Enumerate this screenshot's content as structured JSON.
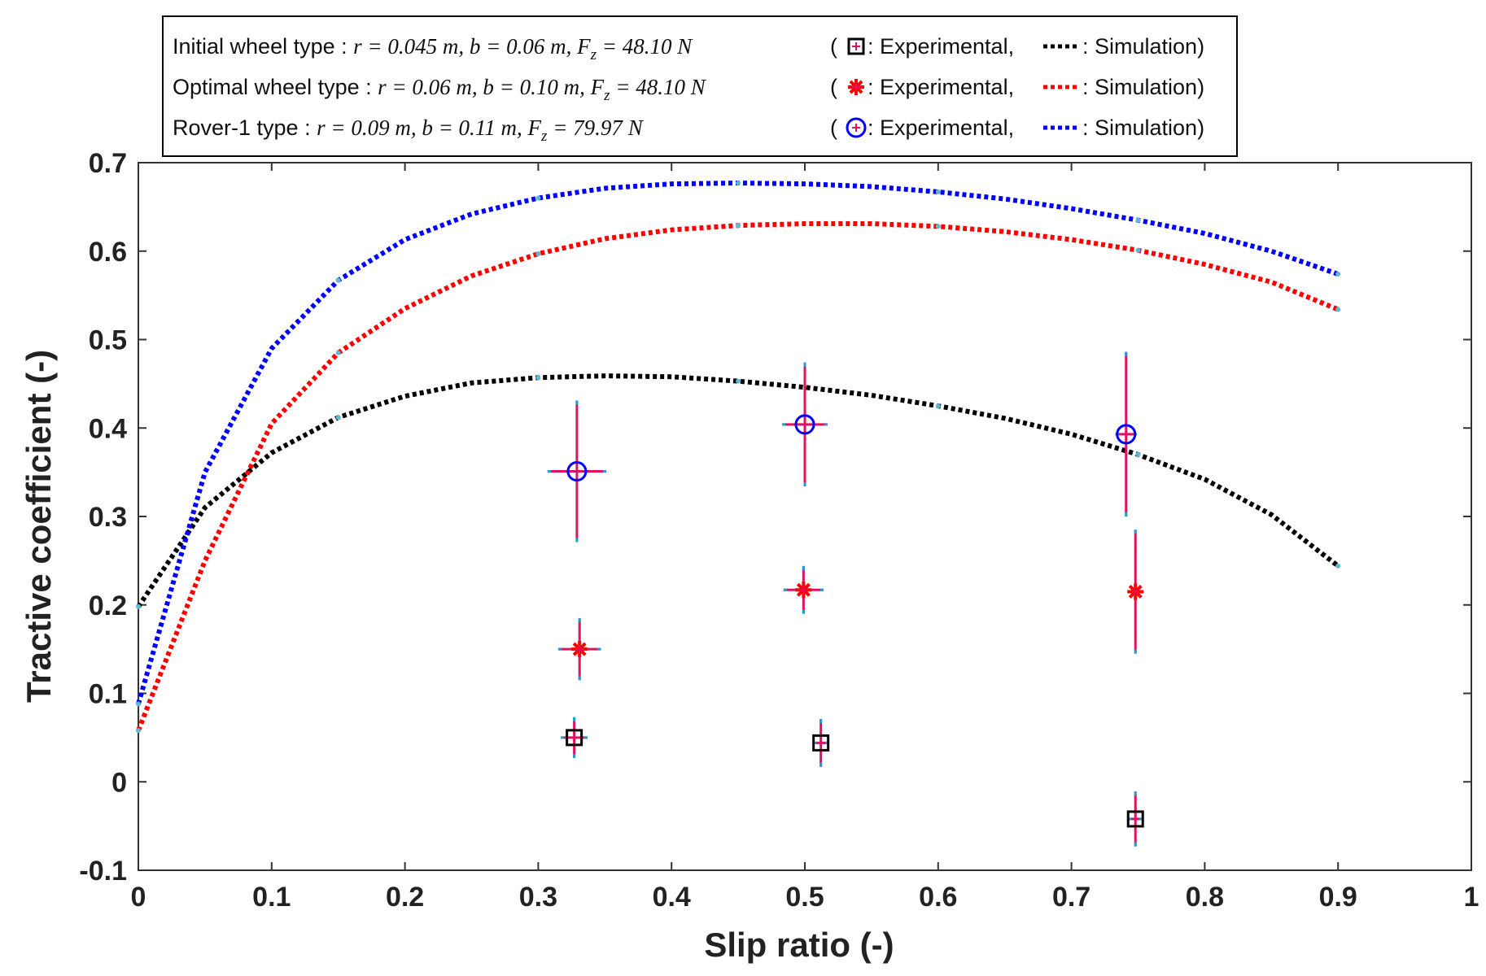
{
  "chart_data": {
    "type": "line",
    "xlabel": "Slip ratio (-)",
    "ylabel": "Tractive coefficient (-)",
    "xlim": [
      0,
      1
    ],
    "ylim": [
      -0.1,
      0.7
    ],
    "xticks": [
      "0",
      "0.1",
      "0.2",
      "0.3",
      "0.4",
      "0.5",
      "0.6",
      "0.7",
      "0.8",
      "0.9",
      "1"
    ],
    "yticks": [
      "-0.1",
      "0",
      "0.1",
      "0.2",
      "0.3",
      "0.4",
      "0.5",
      "0.6",
      "0.7"
    ],
    "grid": false,
    "legend_position": "top-left",
    "series": [
      {
        "key": "initial",
        "name": "Initial wheel type",
        "color": "#000000",
        "params": {
          "r": "0.045",
          "b": "0.06",
          "fz": "48.10"
        },
        "marker": "square",
        "sim": {
          "x": [
            0,
            0.05,
            0.1,
            0.15,
            0.2,
            0.25,
            0.3,
            0.35,
            0.4,
            0.45,
            0.5,
            0.55,
            0.6,
            0.65,
            0.7,
            0.75,
            0.8,
            0.85,
            0.9
          ],
          "y": [
            0.198,
            0.31,
            0.372,
            0.412,
            0.436,
            0.451,
            0.457,
            0.459,
            0.458,
            0.453,
            0.446,
            0.437,
            0.425,
            0.411,
            0.393,
            0.37,
            0.342,
            0.302,
            0.244
          ]
        },
        "exp": [
          {
            "x": 0.327,
            "y": 0.05,
            "yerr": 0.023,
            "xerr": 0.01
          },
          {
            "x": 0.512,
            "y": 0.044,
            "yerr": 0.027,
            "xerr": 0.006
          },
          {
            "x": 0.748,
            "y": -0.042,
            "yerr": 0.031,
            "xerr": 0.005
          }
        ]
      },
      {
        "key": "optimal",
        "name": "Optimal wheel type",
        "color": "#ff0000",
        "params": {
          "r": "0.06",
          "b": "0.10",
          "fz": "48.10"
        },
        "marker": "asterisk",
        "sim": {
          "x": [
            0,
            0.05,
            0.1,
            0.15,
            0.2,
            0.25,
            0.3,
            0.35,
            0.4,
            0.45,
            0.5,
            0.55,
            0.6,
            0.65,
            0.7,
            0.75,
            0.8,
            0.85,
            0.9
          ],
          "y": [
            0.058,
            0.25,
            0.405,
            0.485,
            0.535,
            0.572,
            0.597,
            0.614,
            0.624,
            0.629,
            0.631,
            0.631,
            0.628,
            0.622,
            0.613,
            0.601,
            0.585,
            0.565,
            0.534
          ]
        },
        "exp": [
          {
            "x": 0.331,
            "y": 0.15,
            "yerr": 0.035,
            "xerr": 0.016
          },
          {
            "x": 0.499,
            "y": 0.217,
            "yerr": 0.027,
            "xerr": 0.015
          },
          {
            "x": 0.748,
            "y": 0.215,
            "yerr": 0.07,
            "xerr": 0.005
          }
        ]
      },
      {
        "key": "rover",
        "name": "Rover-1 type",
        "color": "#0000ff",
        "params": {
          "r": "0.09",
          "b": "0.11",
          "fz": "79.97"
        },
        "marker": "circle",
        "sim": {
          "x": [
            0,
            0.05,
            0.1,
            0.15,
            0.2,
            0.25,
            0.3,
            0.35,
            0.4,
            0.45,
            0.5,
            0.55,
            0.6,
            0.65,
            0.7,
            0.75,
            0.8,
            0.85,
            0.9
          ],
          "y": [
            0.088,
            0.35,
            0.49,
            0.567,
            0.613,
            0.642,
            0.66,
            0.671,
            0.676,
            0.677,
            0.676,
            0.673,
            0.667,
            0.659,
            0.648,
            0.635,
            0.62,
            0.6,
            0.574
          ]
        },
        "exp": [
          {
            "x": 0.329,
            "y": 0.351,
            "yerr": 0.08,
            "xerr": 0.022
          },
          {
            "x": 0.5,
            "y": 0.404,
            "yerr": 0.07,
            "xerr": 0.017
          },
          {
            "x": 0.741,
            "y": 0.393,
            "yerr": 0.093,
            "xerr": 0.008
          }
        ]
      }
    ],
    "legend": {
      "rows": [
        {
          "label": "Initial wheel type : ",
          "r": "0.045",
          "b": "0.06",
          "fz": "48.10"
        },
        {
          "label": "Optimal wheel type : ",
          "r": "0.06",
          "b": "0.10",
          "fz": "48.10"
        },
        {
          "label": "Rover-1 type : ",
          "r": "0.09",
          "b": "0.11",
          "fz": "79.97"
        }
      ],
      "exp_label": "Experimental,",
      "sim_label": "Simulation)",
      "open_paren": "(",
      "colon": ":"
    },
    "errorbar_color": "#e0115f",
    "errorcap_color": "#1aa0d8"
  }
}
